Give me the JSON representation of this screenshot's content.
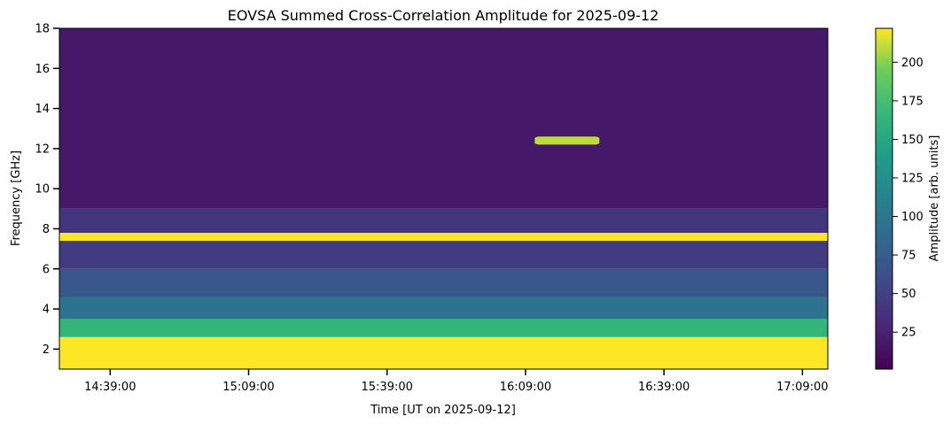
{
  "chart_data": {
    "type": "heatmap",
    "title": "EOVSA Summed Cross-Correlation Amplitude for 2025-09-12",
    "xlabel": "Time [UT on 2025-09-12]",
    "ylabel": "Frequency [GHz]",
    "x_range": [
      "14:28:00",
      "17:14:30"
    ],
    "ylim": [
      1,
      18
    ],
    "x_ticks": [
      "14:39:00",
      "15:09:00",
      "15:39:00",
      "16:09:00",
      "16:39:00",
      "17:09:00"
    ],
    "y_ticks": [
      2,
      4,
      6,
      8,
      10,
      12,
      14,
      16,
      18
    ],
    "colormap": "viridis",
    "colorbar": {
      "label": "Amplitude [arb. units]",
      "range": [
        1,
        222
      ],
      "ticks": [
        25,
        50,
        75,
        100,
        125,
        150,
        175,
        200
      ]
    },
    "features": [
      {
        "freq_range": [
          1.0,
          2.6
        ],
        "level": 222
      },
      {
        "freq_range": [
          2.6,
          3.5
        ],
        "level": 165
      },
      {
        "freq_range": [
          3.5,
          4.6
        ],
        "level": 95
      },
      {
        "freq_range": [
          4.6,
          6.0
        ],
        "level": 70
      },
      {
        "freq_range": [
          6.0,
          7.4
        ],
        "level": 45
      },
      {
        "freq_range": [
          7.4,
          7.8
        ],
        "level": 222
      },
      {
        "freq_range": [
          7.8,
          9.0
        ],
        "level": 40
      },
      {
        "freq_range": [
          9.0,
          18.0
        ],
        "level": 18
      },
      {
        "freq_range": [
          12.2,
          12.6
        ],
        "time_range": [
          "16:11:00",
          "16:25:00"
        ],
        "level": 210
      }
    ]
  }
}
